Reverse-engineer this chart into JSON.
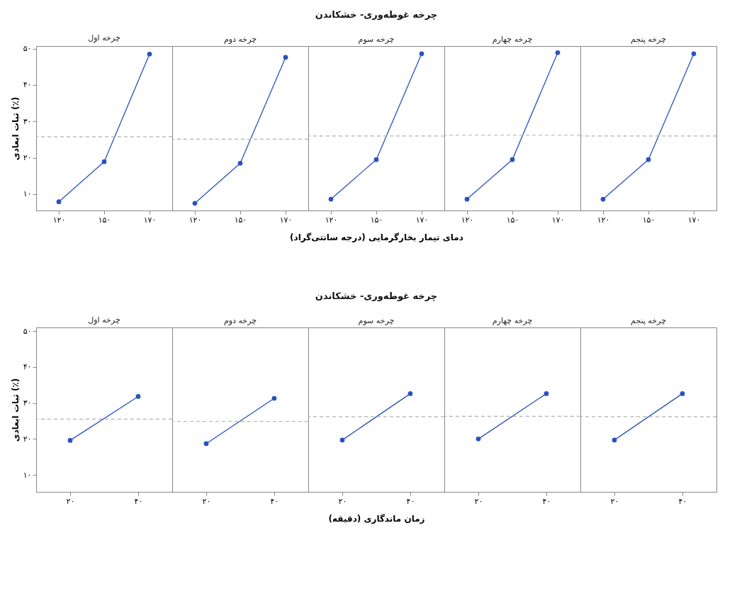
{
  "chart_data": [
    {
      "type": "line",
      "title": "چرخه اول",
      "ylabel": "ثبات ابعادی (٪)",
      "categories": [
        "۱۲۰",
        "۱۵۰",
        "۱۷۰"
      ],
      "series": [
        {
          "color": "#2a52be",
          "values": [
            7.9,
            18.9,
            48.5
          ]
        }
      ],
      "ylim": [
        5.5,
        50.7
      ],
      "yticks": [
        {
          "value": 10,
          "label": "۱۰"
        },
        {
          "value": 20,
          "label": "۲۰"
        },
        {
          "value": 30,
          "label": "۳۰"
        },
        {
          "value": 40,
          "label": "۴۰"
        },
        {
          "value": 50,
          "label": "۵۰"
        }
      ],
      "ref_lines": [
        {
          "axis": "y",
          "value": 25.8,
          "color": "#b0b0b0",
          "line_style": "dashed"
        }
      ],
      "marker": "circle",
      "grid": false
    },
    {
      "type": "line",
      "title": "چرخه دوم",
      "categories": [
        "۱۲۰",
        "۱۵۰",
        "۱۷۰"
      ],
      "series": [
        {
          "color": "#2a52be",
          "values": [
            7.5,
            18.5,
            47.6
          ]
        }
      ],
      "ylim": [
        5.5,
        50.7
      ],
      "tick_labels": "x",
      "ref_lines": [
        {
          "axis": "y",
          "value": 25.1,
          "color": "#b0b0b0",
          "line_style": "dashed"
        }
      ],
      "marker": "circle",
      "grid": false
    },
    {
      "type": "line",
      "subtitle": "چرخه غوطه‌وری- خشکاندن",
      "title": "چرخه سوم",
      "xlabel": "دمای تیمار بخارگرمایی (درجه سانتی‌گراد)",
      "categories": [
        "۱۲۰",
        "۱۵۰",
        "۱۷۰"
      ],
      "series": [
        {
          "color": "#2a52be",
          "values": [
            8.6,
            19.5,
            48.6
          ]
        }
      ],
      "ylim": [
        5.5,
        50.7
      ],
      "tick_labels": "x",
      "ref_lines": [
        {
          "axis": "y",
          "value": 26.0,
          "color": "#b0b0b0",
          "line_style": "dashed"
        }
      ],
      "marker": "circle",
      "grid": false
    },
    {
      "type": "line",
      "title": "چرخه چهارم",
      "categories": [
        "۱۲۰",
        "۱۵۰",
        "۱۷۰"
      ],
      "series": [
        {
          "color": "#2a52be",
          "values": [
            8.6,
            19.5,
            48.9
          ]
        }
      ],
      "ylim": [
        5.5,
        50.7
      ],
      "tick_labels": "x",
      "ref_lines": [
        {
          "axis": "y",
          "value": 26.2,
          "color": "#b0b0b0",
          "line_style": "dashed"
        }
      ],
      "marker": "circle",
      "grid": false
    },
    {
      "type": "line",
      "title": "چرخه پنجم",
      "categories": [
        "۱۲۰",
        "۱۵۰",
        "۱۷۰"
      ],
      "series": [
        {
          "color": "#2a52be",
          "values": [
            8.6,
            19.5,
            48.6
          ]
        }
      ],
      "ylim": [
        5.5,
        50.7
      ],
      "tick_labels": "x",
      "ref_lines": [
        {
          "axis": "y",
          "value": 26.0,
          "color": "#b0b0b0",
          "line_style": "dashed"
        }
      ],
      "marker": "circle",
      "grid": false
    },
    {
      "type": "line",
      "title": "چرخه اول",
      "ylabel": "ثبات ابعادی (٪)",
      "categories": [
        "۲۰",
        "۴۰"
      ],
      "series": [
        {
          "color": "#2a52be",
          "values": [
            19.6,
            31.8
          ]
        }
      ],
      "ylim": [
        5.3,
        51
      ],
      "yticks": [
        {
          "value": 10,
          "label": "۱۰"
        },
        {
          "value": 20,
          "label": "۲۰"
        },
        {
          "value": 30,
          "label": "۳۰"
        },
        {
          "value": 40,
          "label": "۴۰"
        },
        {
          "value": 50,
          "label": "۵۰"
        }
      ],
      "ref_lines": [
        {
          "axis": "y",
          "value": 25.5,
          "color": "#b0b0b0",
          "line_style": "dashed"
        }
      ],
      "marker": "circle",
      "grid": false
    },
    {
      "type": "line",
      "title": "چرخه دوم",
      "categories": [
        "۲۰",
        "۴۰"
      ],
      "series": [
        {
          "color": "#2a52be",
          "values": [
            18.7,
            31.3
          ]
        }
      ],
      "ylim": [
        5.3,
        51
      ],
      "tick_labels": "x",
      "ref_lines": [
        {
          "axis": "y",
          "value": 24.9,
          "color": "#b0b0b0",
          "line_style": "dashed"
        }
      ],
      "marker": "circle",
      "grid": false
    },
    {
      "type": "line",
      "subtitle": "چرخه غوطه‌وری- خشکاندن",
      "title": "چرخه سوم",
      "xlabel": "زمان ماندگاری (دقیقه)",
      "categories": [
        "۲۰",
        "۴۰"
      ],
      "series": [
        {
          "color": "#2a52be",
          "values": [
            19.7,
            32.6
          ]
        }
      ],
      "ylim": [
        5.3,
        51
      ],
      "tick_labels": "x",
      "ref_lines": [
        {
          "axis": "y",
          "value": 26.2,
          "color": "#b0b0b0",
          "line_style": "dashed"
        }
      ],
      "marker": "circle",
      "grid": false
    },
    {
      "type": "line",
      "title": "چرخه چهارم",
      "categories": [
        "۲۰",
        "۴۰"
      ],
      "series": [
        {
          "color": "#2a52be",
          "values": [
            20.0,
            32.6
          ]
        }
      ],
      "ylim": [
        5.3,
        51
      ],
      "tick_labels": "x",
      "ref_lines": [
        {
          "axis": "y",
          "value": 26.3,
          "color": "#b0b0b0",
          "line_style": "dashed"
        }
      ],
      "marker": "circle",
      "grid": false
    },
    {
      "type": "line",
      "title": "چرخه پنجم",
      "categories": [
        "۲۰",
        "۴۰"
      ],
      "series": [
        {
          "color": "#2a52be",
          "values": [
            19.7,
            32.6
          ]
        }
      ],
      "ylim": [
        5.3,
        51
      ],
      "tick_labels": "x",
      "ref_lines": [
        {
          "axis": "y",
          "value": 26.2,
          "color": "#b0b0b0",
          "line_style": "dashed"
        }
      ],
      "marker": "circle",
      "grid": false
    }
  ]
}
